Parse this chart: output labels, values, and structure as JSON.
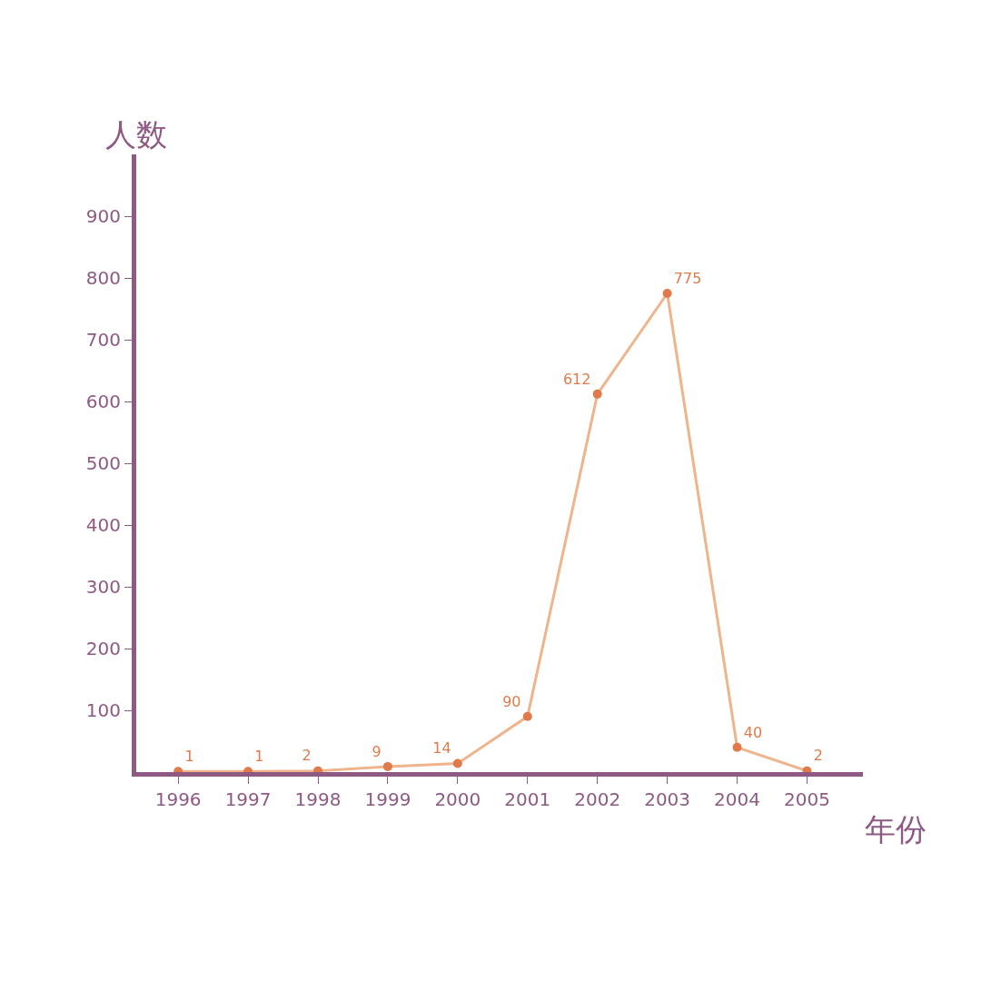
{
  "chart_data": {
    "type": "line",
    "xlabel": "年份",
    "ylabel": "人数",
    "categories": [
      "1996",
      "1997",
      "1998",
      "1999",
      "2000",
      "2001",
      "2002",
      "2003",
      "2004",
      "2005"
    ],
    "series": [
      {
        "color": "#f0b48c",
        "values": [
          1,
          1,
          2,
          9,
          14,
          90,
          612,
          775,
          40,
          2
        ]
      }
    ],
    "ylim": [
      0,
      1000
    ],
    "yticks": [
      100,
      200,
      300,
      400,
      500,
      600,
      700,
      800,
      900
    ],
    "data_labels": true,
    "marker": "circle"
  }
}
